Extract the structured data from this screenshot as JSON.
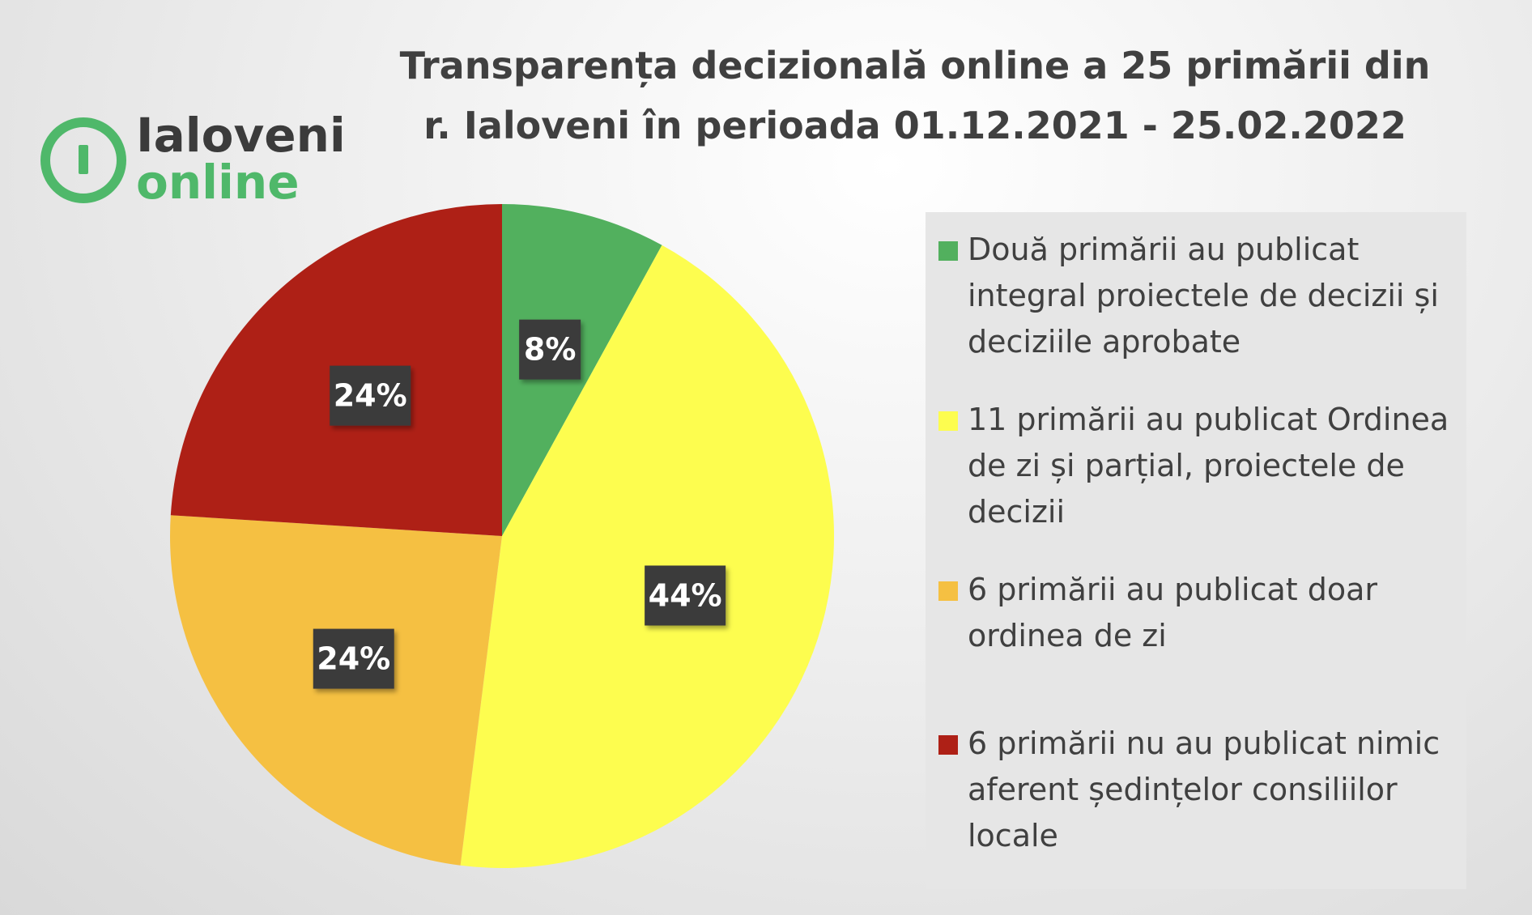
{
  "title": {
    "line1": "Transparența decizională online a 25 primării din",
    "line2": "r. Ialoveni în perioada 01.12.2021 - 25.02.2022"
  },
  "logo": {
    "line1": "Ialoveni",
    "line2": "online",
    "icon": "ialoveni-online-logo-icon",
    "color": "#4fb86a"
  },
  "chart_data": {
    "type": "pie",
    "title": "Transparența decizională online a 25 primării din r. Ialoveni în perioada 01.12.2021 - 25.02.2022",
    "legend_position": "right",
    "slices": [
      {
        "label": "Două primării au publicat integral proiectele de decizii și deciziile aprobate",
        "value": 8,
        "display": "8%",
        "color": "#52b05e"
      },
      {
        "label": "11 primării au publicat Ordinea de zi și parțial, proiectele de decizii",
        "value": 44,
        "display": "44%",
        "color": "#fdfd4f"
      },
      {
        "label": "6 primării au publicat doar ordinea de zi",
        "value": 24,
        "display": "24%",
        "color": "#f5c042"
      },
      {
        "label": "6 primării nu au publicat nimic aferent ședințelor consiliilor locale",
        "value": 24,
        "display": "24%",
        "color": "#ae2016"
      }
    ]
  }
}
